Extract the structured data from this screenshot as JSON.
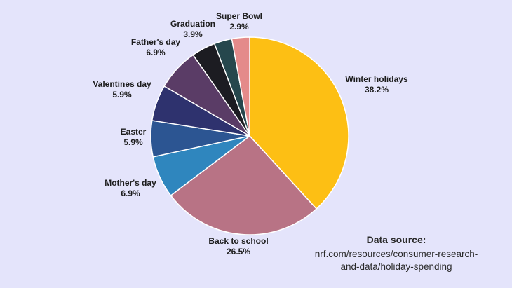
{
  "chart_data": {
    "type": "pie",
    "title": "",
    "slices": [
      {
        "label": "Winter holidays",
        "value": 38.2,
        "value_label": "38.2%",
        "color": "#fdbf14"
      },
      {
        "label": "Back to school",
        "value": 26.5,
        "value_label": "26.5%",
        "color": "#b87385"
      },
      {
        "label": "Mother's day",
        "value": 6.9,
        "value_label": "6.9%",
        "color": "#2f86be"
      },
      {
        "label": "Easter",
        "value": 5.9,
        "value_label": "5.9%",
        "color": "#2c5592"
      },
      {
        "label": "Valentines day",
        "value": 5.9,
        "value_label": "5.9%",
        "color": "#2e326e"
      },
      {
        "label": "Father's day",
        "value": 6.9,
        "value_label": "6.9%",
        "color": "#5a3c66"
      },
      {
        "label": "Graduation",
        "value": 3.9,
        "value_label": "3.9%",
        "color": "#1c1c22"
      },
      {
        "label": "Super Bowl",
        "value": 2.9,
        "value_label": "2.9%",
        "color": "#26474d"
      },
      {
        "label": "",
        "value": 2.9,
        "value_label": "",
        "color": "#e48a8a"
      }
    ]
  },
  "source": {
    "title": "Data source:",
    "line1": "nrf.com/resources/consumer-research-",
    "line2": "and-data/holiday-spending"
  },
  "colors": {
    "background": "#e4e4fb"
  }
}
